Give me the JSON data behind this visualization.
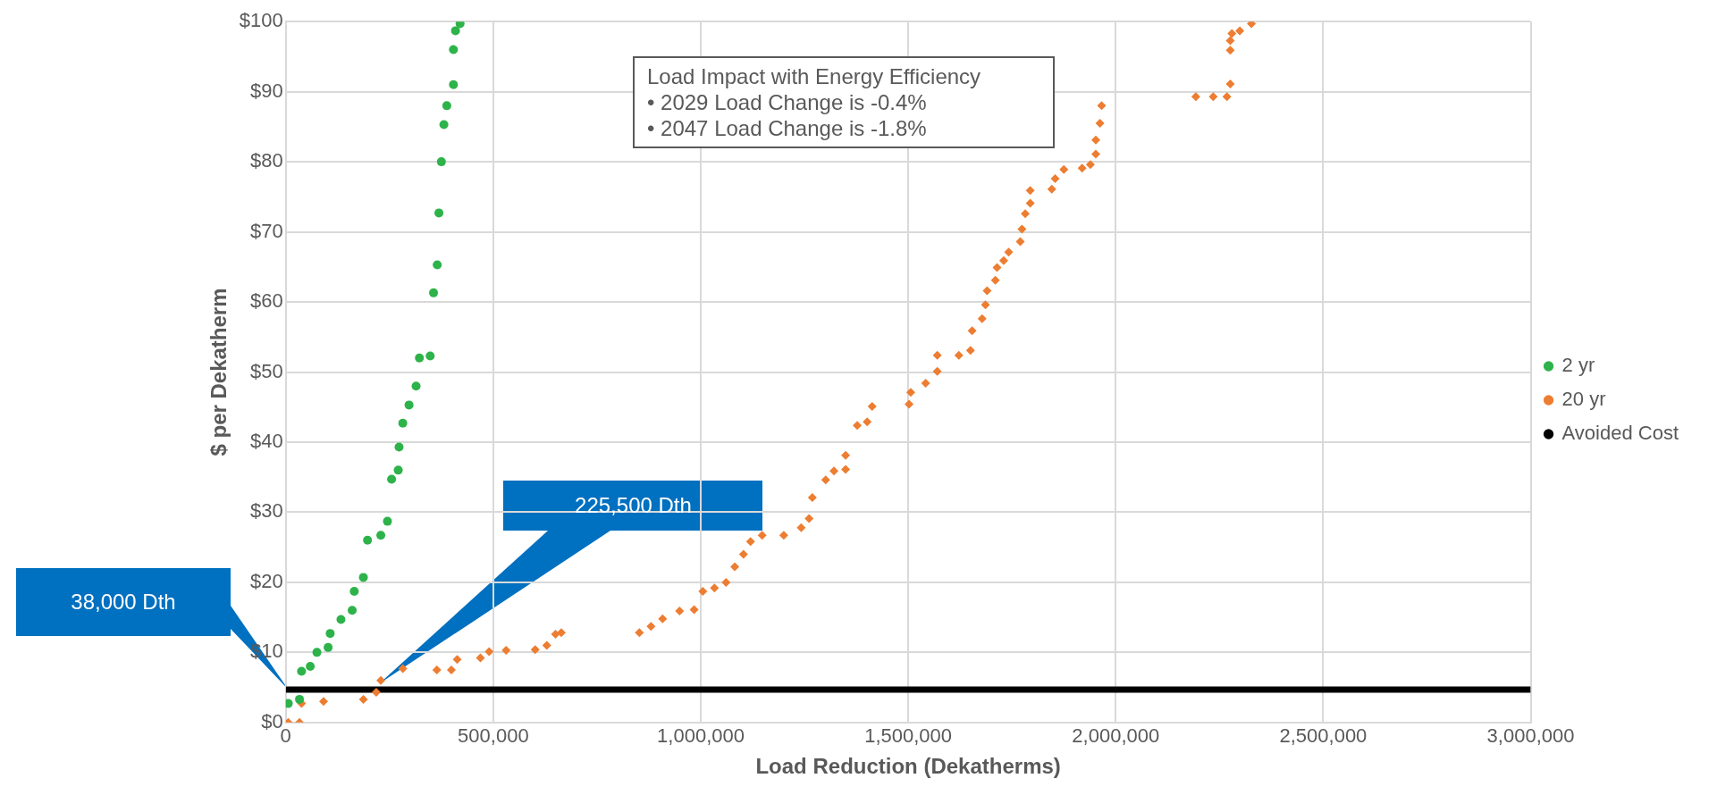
{
  "chart_data": {
    "type": "scatter",
    "xlabel": "Load Reduction (Dekatherms)",
    "ylabel": "$ per Dekatherm",
    "xlim": [
      0,
      3000000
    ],
    "xticks": [
      {
        "value": 0,
        "label": "0"
      },
      {
        "value": 500000,
        "label": "500,000"
      },
      {
        "value": 1000000,
        "label": "1,000,000"
      },
      {
        "value": 1500000,
        "label": "1,500,000"
      },
      {
        "value": 2000000,
        "label": "2,000,000"
      },
      {
        "value": 2500000,
        "label": "2,500,000"
      },
      {
        "value": 3000000,
        "label": "3,000,000"
      }
    ],
    "ylim": [
      0,
      100
    ],
    "yticks": [
      {
        "value": 0,
        "label": "$0"
      },
      {
        "value": 10,
        "label": "$10"
      },
      {
        "value": 20,
        "label": "$20"
      },
      {
        "value": 30,
        "label": "$30"
      },
      {
        "value": 40,
        "label": "$40"
      },
      {
        "value": 50,
        "label": "$50"
      },
      {
        "value": 60,
        "label": "$60"
      },
      {
        "value": 70,
        "label": "$70"
      },
      {
        "value": 80,
        "label": "$80"
      },
      {
        "value": 90,
        "label": "$90"
      },
      {
        "value": 100,
        "label": "$100"
      }
    ],
    "grid": true,
    "legend": "right",
    "series": [
      {
        "name": "2 yr",
        "color": "#2db34a",
        "marker": "circle",
        "x": [
          6000,
          33000,
          38000,
          59000,
          75000,
          102000,
          107000,
          133000,
          160000,
          165000,
          187000,
          197000,
          229000,
          245000,
          255000,
          271000,
          273000,
          282000,
          297000,
          314000,
          322000,
          348000,
          356000,
          365000,
          369000,
          375000,
          381000,
          388000,
          404000,
          404000,
          409000,
          420000
        ],
        "values": [
          2.7,
          3.3,
          7.3,
          8,
          10,
          10.7,
          12.7,
          14.7,
          16,
          18.7,
          20.7,
          26,
          26.7,
          28.7,
          34.7,
          36,
          39.3,
          42.7,
          45.3,
          48,
          52,
          52.3,
          61.3,
          65.3,
          72.7,
          80,
          85.3,
          88,
          91,
          96,
          98.7,
          99.7
        ]
      },
      {
        "name": "20 yr",
        "color": "#ed7d31",
        "marker": "diamond",
        "x": [
          6000,
          33000,
          38000,
          91000,
          187000,
          218000,
          229000,
          282000,
          364000,
          399000,
          413000,
          469000,
          490000,
          531000,
          601000,
          629000,
          650000,
          664000,
          852000,
          880000,
          908000,
          949000,
          984000,
          1005000,
          1033000,
          1061000,
          1082000,
          1103000,
          1120000,
          1148000,
          1200000,
          1242000,
          1261000,
          1269000,
          1301000,
          1321000,
          1349000,
          1349000,
          1377000,
          1401000,
          1413000,
          1502000,
          1506000,
          1542000,
          1570000,
          1570000,
          1622000,
          1650000,
          1654000,
          1678000,
          1686000,
          1690000,
          1710000,
          1714000,
          1730000,
          1742000,
          1770000,
          1774000,
          1782000,
          1794000,
          1794000,
          1846000,
          1854000,
          1875000,
          1919000,
          1939000,
          1952000,
          1952000,
          1962000,
          1966000,
          2193000,
          2235000,
          2268000,
          2276000,
          2276000,
          2276000,
          2280000,
          2299000,
          2327000
        ],
        "values": [
          0,
          0,
          2.7,
          3,
          3.3,
          4.3,
          6,
          7.7,
          7.5,
          7.5,
          9,
          9.2,
          10.1,
          10.3,
          10.4,
          11,
          12.6,
          12.8,
          12.8,
          13.7,
          14.8,
          15.9,
          16.1,
          18.7,
          19.2,
          20,
          22.2,
          24,
          25.8,
          26.7,
          26.7,
          27.8,
          29.1,
          32.1,
          34.6,
          35.9,
          36.1,
          38.1,
          42.4,
          42.9,
          45.1,
          45.4,
          47.1,
          48.4,
          50.1,
          52.4,
          52.4,
          53.1,
          55.9,
          57.6,
          59.6,
          61.6,
          63.1,
          64.9,
          65.9,
          67.1,
          68.6,
          70.4,
          72.6,
          74.1,
          75.9,
          76.1,
          77.6,
          78.9,
          79.1,
          79.6,
          81.1,
          83.1,
          85.5,
          88,
          89.3,
          89.3,
          89.3,
          91.1,
          95.9,
          97.3,
          98.3,
          98.7,
          99.7
        ]
      },
      {
        "name": "Avoided Cost",
        "color": "#000000",
        "type": "line",
        "marker": "none",
        "x": [
          0,
          3000000
        ],
        "values": [
          4.7,
          4.7
        ]
      }
    ],
    "annotations": [
      "38,000 Dth",
      "225,500 Dth",
      "Load Impact with Energy Efficiency",
      "• 2029 Load Change is -0.4%",
      "• 2047 Load Change is -1.8%"
    ]
  }
}
